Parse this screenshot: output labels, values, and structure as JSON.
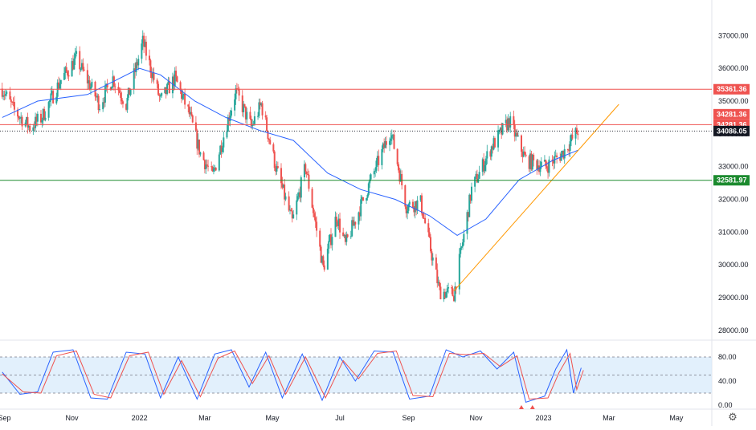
{
  "colors": {
    "up": "#26a69a",
    "down": "#ef5350",
    "ma_line": "#2962ff",
    "resistance": "#ef5350",
    "support": "#1b8a2e",
    "trendline": "#ff9800",
    "current_price": "#131722",
    "stoch_k": "#2962ff",
    "stoch_d": "#ef5350",
    "stoch_band": "#d6e9fb"
  },
  "icons": {
    "settings": "gear-icon"
  },
  "chart_data": [
    {
      "type": "candlestick",
      "subtype": "price",
      "xlabel": "",
      "ylabel": "",
      "ylim": [
        27800,
        37400
      ],
      "y_ticks": [
        "37000.00",
        "36000.00",
        "35000.00",
        "34000.00",
        "33000.00",
        "32000.00",
        "31000.00",
        "30000.00",
        "29000.00",
        "28000.00"
      ],
      "y_tick_values": [
        37000,
        36000,
        35000,
        34000,
        33000,
        32000,
        31000,
        30000,
        29000,
        28000
      ],
      "x_ticks": [
        "Sep",
        "Nov",
        "2022",
        "Mar",
        "May",
        "Jul",
        "Sep",
        "Nov",
        "2023",
        "Mar",
        "May"
      ],
      "x_tick_dates": [
        "2021-09-01",
        "2021-11-01",
        "2022-01-01",
        "2022-03-01",
        "2022-05-01",
        "2022-07-01",
        "2022-09-01",
        "2022-11-01",
        "2023-01-01",
        "2023-03-01",
        "2023-05-01"
      ],
      "xlim": [
        "2021-08-28",
        "2023-06-02"
      ],
      "grid": false,
      "close_path": [
        [
          "2021-08-30",
          35380
        ],
        [
          "2021-09-10",
          34700
        ],
        [
          "2021-09-24",
          34200
        ],
        [
          "2021-10-05",
          34500
        ],
        [
          "2021-10-22",
          35650
        ],
        [
          "2021-11-05",
          36300
        ],
        [
          "2021-11-26",
          34900
        ],
        [
          "2021-12-08",
          35700
        ],
        [
          "2021-12-20",
          34900
        ],
        [
          "2022-01-04",
          36800
        ],
        [
          "2022-01-20",
          35000
        ],
        [
          "2022-02-02",
          35700
        ],
        [
          "2022-02-15",
          34600
        ],
        [
          "2022-02-25",
          33400
        ],
        [
          "2022-03-08",
          32700
        ],
        [
          "2022-03-29",
          35300
        ],
        [
          "2022-04-12",
          34200
        ],
        [
          "2022-04-21",
          34900
        ],
        [
          "2022-05-04",
          33000
        ],
        [
          "2022-05-19",
          31300
        ],
        [
          "2022-05-31",
          33000
        ],
        [
          "2022-06-16",
          29900
        ],
        [
          "2022-06-28",
          31500
        ],
        [
          "2022-07-06",
          30600
        ],
        [
          "2022-07-28",
          32500
        ],
        [
          "2022-08-16",
          34100
        ],
        [
          "2022-08-30",
          31800
        ],
        [
          "2022-09-12",
          31900
        ],
        [
          "2022-09-29",
          29200
        ],
        [
          "2022-10-12",
          29100
        ],
        [
          "2022-10-28",
          32300
        ],
        [
          "2022-11-15",
          33600
        ],
        [
          "2022-12-01",
          34400
        ],
        [
          "2022-12-16",
          33200
        ],
        [
          "2023-01-03",
          33000
        ],
        [
          "2023-01-18",
          33400
        ],
        [
          "2023-02-01",
          34100
        ]
      ],
      "moving_average": [
        [
          "2021-08-30",
          34500
        ],
        [
          "2021-10-01",
          35000
        ],
        [
          "2021-11-15",
          35200
        ],
        [
          "2022-01-01",
          36000
        ],
        [
          "2022-01-20",
          35800
        ],
        [
          "2022-02-20",
          35000
        ],
        [
          "2022-03-20",
          34500
        ],
        [
          "2022-04-20",
          34100
        ],
        [
          "2022-05-20",
          33800
        ],
        [
          "2022-06-20",
          32800
        ],
        [
          "2022-07-20",
          32300
        ],
        [
          "2022-08-20",
          32000
        ],
        [
          "2022-09-20",
          31500
        ],
        [
          "2022-10-15",
          30900
        ],
        [
          "2022-11-10",
          31400
        ],
        [
          "2022-12-10",
          32600
        ],
        [
          "2023-01-10",
          33200
        ],
        [
          "2023-02-01",
          33500
        ]
      ],
      "horizontal_levels": [
        {
          "label": "35361.36",
          "value": 35361.36,
          "kind": "resistance"
        },
        {
          "label": "34281.36",
          "value": 34281.36,
          "kind": "resistance"
        },
        {
          "label": "34281.36",
          "value": 34281.36,
          "kind": "resistance-tag"
        },
        {
          "label": "34086.05",
          "value": 34086.05,
          "kind": "current"
        },
        {
          "label": "32581.97",
          "value": 32581.97,
          "kind": "support"
        }
      ],
      "trendline": [
        [
          "2022-10-12",
          29200
        ],
        [
          "2023-03-10",
          34900
        ]
      ],
      "annotations": []
    },
    {
      "type": "line",
      "subtype": "stochastic",
      "ylim": [
        0,
        100
      ],
      "y_ticks": [
        "80.00",
        "40.00",
        "0.00"
      ],
      "y_tick_values": [
        80,
        40,
        0
      ],
      "band": [
        20,
        80
      ],
      "dashed_levels": [
        80,
        50,
        20
      ],
      "series": [
        {
          "key": "k",
          "points": [
            [
              "2021-08-30",
              55
            ],
            [
              "2021-09-15",
              18
            ],
            [
              "2021-10-01",
              22
            ],
            [
              "2021-10-15",
              88
            ],
            [
              "2021-11-02",
              92
            ],
            [
              "2021-11-18",
              12
            ],
            [
              "2021-12-03",
              10
            ],
            [
              "2021-12-20",
              88
            ],
            [
              "2022-01-06",
              85
            ],
            [
              "2022-01-20",
              12
            ],
            [
              "2022-02-05",
              80
            ],
            [
              "2022-02-22",
              10
            ],
            [
              "2022-03-10",
              85
            ],
            [
              "2022-03-25",
              92
            ],
            [
              "2022-04-10",
              30
            ],
            [
              "2022-04-25",
              88
            ],
            [
              "2022-05-10",
              12
            ],
            [
              "2022-05-28",
              85
            ],
            [
              "2022-06-15",
              8
            ],
            [
              "2022-07-01",
              80
            ],
            [
              "2022-07-15",
              40
            ],
            [
              "2022-08-01",
              90
            ],
            [
              "2022-08-18",
              88
            ],
            [
              "2022-09-02",
              10
            ],
            [
              "2022-09-20",
              15
            ],
            [
              "2022-10-05",
              92
            ],
            [
              "2022-10-20",
              80
            ],
            [
              "2022-11-05",
              90
            ],
            [
              "2022-11-20",
              60
            ],
            [
              "2022-12-05",
              88
            ],
            [
              "2022-12-16",
              5
            ],
            [
              "2023-01-02",
              15
            ],
            [
              "2023-01-12",
              60
            ],
            [
              "2023-01-22",
              92
            ],
            [
              "2023-01-28",
              20
            ],
            [
              "2023-02-04",
              62
            ]
          ]
        },
        {
          "key": "d",
          "points": [
            [
              "2021-08-30",
              52
            ],
            [
              "2021-09-18",
              22
            ],
            [
              "2021-10-04",
              20
            ],
            [
              "2021-10-18",
              82
            ],
            [
              "2021-11-05",
              90
            ],
            [
              "2021-11-21",
              18
            ],
            [
              "2021-12-06",
              12
            ],
            [
              "2021-12-23",
              82
            ],
            [
              "2022-01-09",
              88
            ],
            [
              "2022-01-23",
              18
            ],
            [
              "2022-02-08",
              74
            ],
            [
              "2022-02-25",
              14
            ],
            [
              "2022-03-13",
              78
            ],
            [
              "2022-03-28",
              90
            ],
            [
              "2022-04-13",
              36
            ],
            [
              "2022-04-28",
              82
            ],
            [
              "2022-05-13",
              18
            ],
            [
              "2022-05-31",
              80
            ],
            [
              "2022-06-18",
              12
            ],
            [
              "2022-07-04",
              74
            ],
            [
              "2022-07-18",
              44
            ],
            [
              "2022-08-04",
              86
            ],
            [
              "2022-08-21",
              90
            ],
            [
              "2022-09-05",
              16
            ],
            [
              "2022-09-23",
              14
            ],
            [
              "2022-10-08",
              86
            ],
            [
              "2022-10-23",
              84
            ],
            [
              "2022-11-08",
              86
            ],
            [
              "2022-11-23",
              64
            ],
            [
              "2022-12-08",
              82
            ],
            [
              "2022-12-19",
              10
            ],
            [
              "2023-01-05",
              12
            ],
            [
              "2023-01-15",
              54
            ],
            [
              "2023-01-25",
              86
            ],
            [
              "2023-01-31",
              26
            ],
            [
              "2023-02-06",
              58
            ]
          ]
        }
      ],
      "markers": [
        {
          "date": "2022-12-12",
          "shape": "up-triangle"
        },
        {
          "date": "2022-12-22",
          "shape": "up-triangle"
        }
      ]
    }
  ]
}
